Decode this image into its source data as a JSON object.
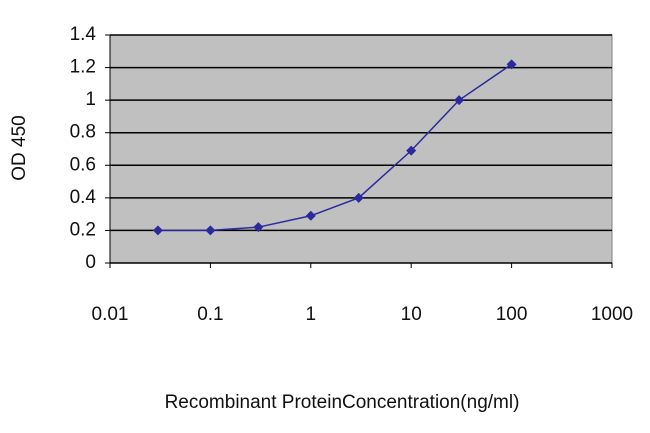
{
  "chart_data": {
    "type": "line",
    "xlabel": "Recombinant ProteinConcentration(ng/ml)",
    "ylabel": "OD 450",
    "x": [
      0.03,
      0.1,
      0.3,
      1,
      3,
      10,
      30,
      100
    ],
    "values": [
      0.2,
      0.2,
      0.22,
      0.29,
      0.4,
      0.69,
      1.0,
      1.22
    ],
    "color": "#2a2a9c",
    "xscale": "log",
    "xlim": [
      0.01,
      1000
    ],
    "xticks": [
      0.01,
      0.1,
      1,
      10,
      100,
      1000
    ],
    "ylim": [
      0,
      1.4
    ],
    "yticks": [
      0,
      0.2,
      0.4,
      0.6,
      0.8,
      1,
      1.2,
      1.4
    ],
    "grid": true
  }
}
